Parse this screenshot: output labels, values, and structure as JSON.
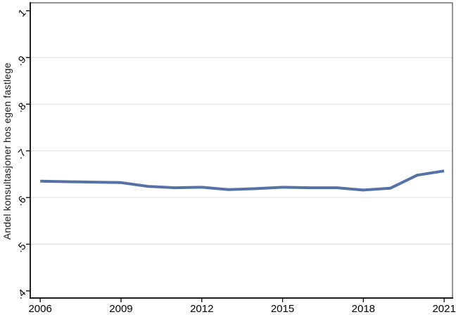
{
  "chart_data": {
    "type": "line",
    "title": "",
    "xlabel": "",
    "ylabel": "Andel konsultasjoner hos egen fastlege",
    "x": [
      2006,
      2007,
      2008,
      2009,
      2010,
      2011,
      2012,
      2013,
      2014,
      2015,
      2016,
      2017,
      2018,
      2019,
      2020,
      2021
    ],
    "values": [
      0.635,
      0.634,
      0.633,
      0.632,
      0.624,
      0.621,
      0.622,
      0.617,
      0.619,
      0.622,
      0.621,
      0.621,
      0.616,
      0.62,
      0.648,
      0.657
    ],
    "series_name": "Andel konsultasjoner hos egen fastlege",
    "xlim": [
      2005.63,
      2021.31
    ],
    "ylim": [
      0.3847,
      1.0172
    ],
    "xticks": [
      2006,
      2009,
      2012,
      2015,
      2018,
      2021
    ],
    "xtick_labels": [
      "2006",
      "2009",
      "2012",
      "2015",
      "2018",
      "2021"
    ],
    "yticks": [
      0.4,
      0.5,
      0.6,
      0.7,
      0.8,
      0.9,
      1
    ],
    "ytick_labels": [
      ".4",
      ".5",
      ".6",
      ".7",
      ".8",
      ".9",
      "1"
    ],
    "ytick_label_angle_deg": -45,
    "grid": "horizontal",
    "grid_values": [
      0.5,
      0.6,
      0.7,
      0.8,
      0.9
    ],
    "legend": "none",
    "colors": {
      "line": "#5572a7",
      "grid": "#e4e4e4",
      "axis": "#000000",
      "plot_border": "#4d4d4d",
      "text": "#000000",
      "background": "#ffffff"
    }
  }
}
